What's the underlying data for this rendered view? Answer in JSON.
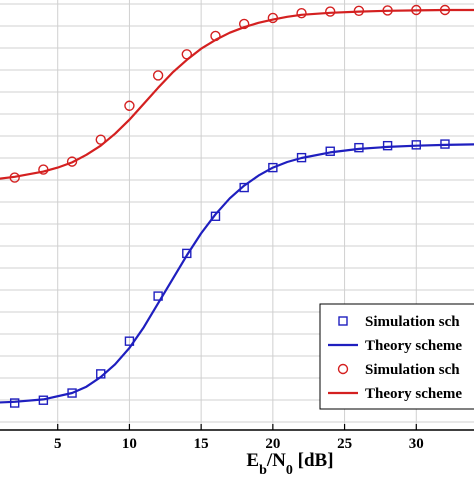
{
  "chart_data": {
    "type": "line",
    "xlabel": "E_b/N_0 [dB]",
    "xlabel_parts": {
      "main": "E",
      "sub1": "b",
      "slash": "/N",
      "sub2": "0",
      "unit": " [dB]"
    },
    "xlim": [
      0,
      35
    ],
    "ylim": [
      0,
      1
    ],
    "xticks": [
      5,
      10,
      15,
      20,
      25,
      30
    ],
    "xtick_labels": [
      "5",
      "10",
      "15",
      "20",
      "25",
      "30"
    ],
    "grid": true,
    "legend_placement": "bottom-right",
    "series": [
      {
        "name": "Simulation sch",
        "kind": "markers",
        "marker": "square",
        "color": "#1f1fbf",
        "x": [
          2,
          4,
          6,
          8,
          10,
          12,
          14,
          16,
          18,
          20,
          22,
          24,
          26,
          28,
          30,
          32
        ],
        "y": [
          0.015,
          0.022,
          0.04,
          0.088,
          0.17,
          0.283,
          0.39,
          0.483,
          0.555,
          0.605,
          0.63,
          0.646,
          0.655,
          0.66,
          0.662,
          0.664
        ]
      },
      {
        "name": "Theory scheme",
        "kind": "line",
        "color": "#1f1fbf",
        "x": [
          0,
          2,
          4,
          6,
          7,
          8,
          9,
          10,
          11,
          12,
          13,
          14,
          15,
          16,
          17,
          18,
          19,
          20,
          21,
          22,
          24,
          26,
          28,
          30,
          32,
          35
        ],
        "y": [
          0.015,
          0.018,
          0.024,
          0.04,
          0.056,
          0.08,
          0.112,
          0.153,
          0.205,
          0.265,
          0.325,
          0.385,
          0.44,
          0.488,
          0.528,
          0.56,
          0.585,
          0.605,
          0.619,
          0.629,
          0.643,
          0.652,
          0.657,
          0.66,
          0.662,
          0.664
        ]
      },
      {
        "name": "Simulation sch",
        "kind": "markers",
        "marker": "circle",
        "color": "#d42020",
        "x": [
          2,
          4,
          6,
          8,
          10,
          12,
          14,
          16,
          18,
          20,
          22,
          24,
          26,
          28,
          30,
          32
        ],
        "y": [
          0.58,
          0.6,
          0.62,
          0.675,
          0.76,
          0.836,
          0.889,
          0.935,
          0.965,
          0.98,
          0.992,
          0.996,
          0.998,
          0.999,
          1.0,
          1.0
        ]
      },
      {
        "name": "Theory scheme",
        "kind": "line",
        "color": "#d42020",
        "x": [
          0,
          2,
          4,
          5,
          6,
          7,
          8,
          9,
          10,
          11,
          12,
          13,
          14,
          15,
          16,
          17,
          18,
          19,
          20,
          21,
          22,
          24,
          26,
          28,
          30,
          32,
          35
        ],
        "y": [
          0.573,
          0.582,
          0.595,
          0.605,
          0.618,
          0.637,
          0.66,
          0.69,
          0.725,
          0.765,
          0.805,
          0.843,
          0.875,
          0.903,
          0.925,
          0.943,
          0.957,
          0.968,
          0.976,
          0.983,
          0.988,
          0.993,
          0.996,
          0.998,
          0.999,
          1.0,
          1.0
        ]
      }
    ]
  },
  "colors": {
    "axis": "#000000",
    "grid": "#d0d0d0",
    "background": "#ffffff"
  }
}
